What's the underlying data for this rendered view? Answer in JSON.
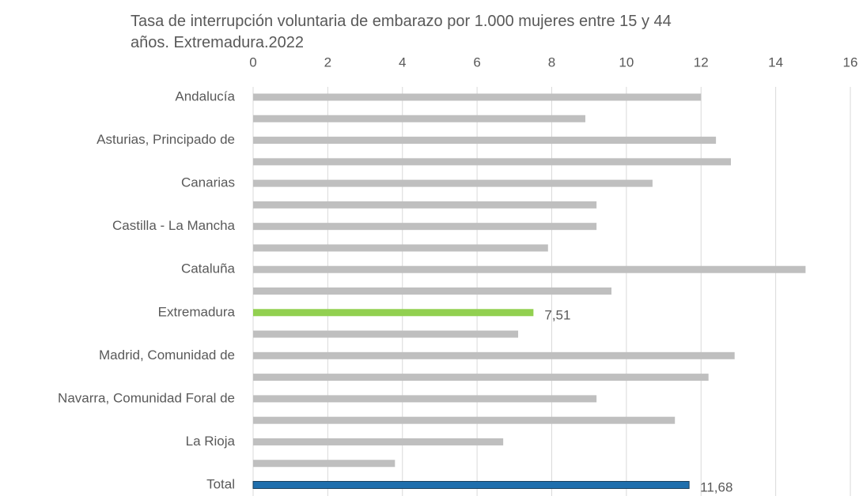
{
  "chart_data": {
    "type": "barh",
    "title": "Tasa de interrupción voluntaria de embarazo por 1.000 mujeres entre 15 y 44 años. Extremadura.2022",
    "categories": [
      "Andalucía",
      null,
      "Asturias, Principado de",
      null,
      "Canarias",
      null,
      "Castilla - La Mancha",
      null,
      "Cataluña",
      null,
      "Extremadura",
      null,
      "Madrid, Comunidad de",
      null,
      "Navarra, Comunidad Foral de",
      null,
      "La Rioja",
      null,
      "Total"
    ],
    "values": [
      12.0,
      8.9,
      12.4,
      12.8,
      10.7,
      9.2,
      9.2,
      7.9,
      14.8,
      9.6,
      7.51,
      7.1,
      12.9,
      12.2,
      9.2,
      11.3,
      6.7,
      3.8,
      11.68
    ],
    "value_labels": [
      null,
      null,
      null,
      null,
      null,
      null,
      null,
      null,
      null,
      null,
      "7,51",
      null,
      null,
      null,
      null,
      null,
      null,
      null,
      "11,68"
    ],
    "colors": [
      "#bfbfbf",
      "#bfbfbf",
      "#bfbfbf",
      "#bfbfbf",
      "#bfbfbf",
      "#bfbfbf",
      "#bfbfbf",
      "#bfbfbf",
      "#bfbfbf",
      "#bfbfbf",
      "#92d050",
      "#bfbfbf",
      "#bfbfbf",
      "#bfbfbf",
      "#bfbfbf",
      "#bfbfbf",
      "#bfbfbf",
      "#bfbfbf",
      "#1f6fad"
    ],
    "xlim": [
      0,
      16
    ],
    "xticks": [
      0,
      2,
      4,
      6,
      8,
      10,
      12,
      14,
      16
    ],
    "grid": true
  }
}
